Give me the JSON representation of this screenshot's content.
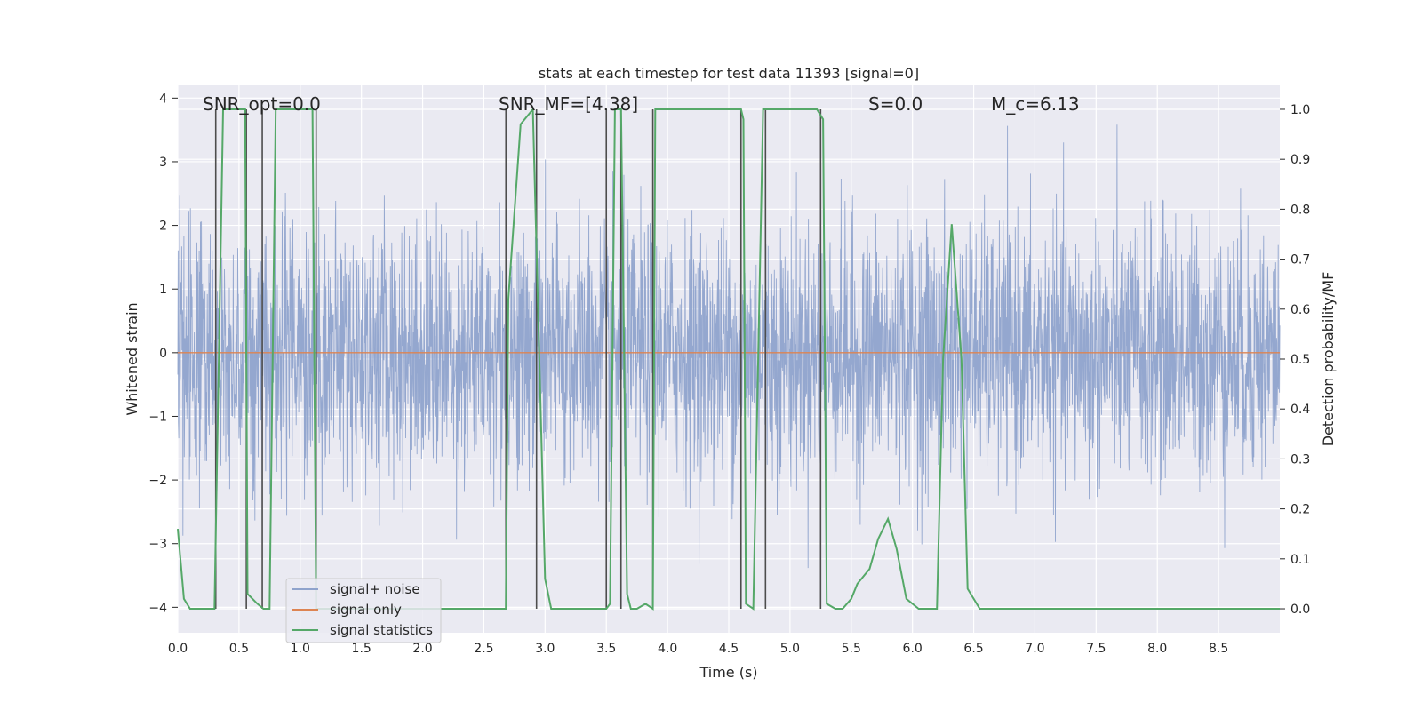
{
  "chart_data": {
    "type": "line",
    "title": "stats at each timestep for test data 11393 [signal=0]",
    "xlabel": "Time (s)",
    "ylabel": "Whitened strain",
    "y2label": "Detection probability/MF",
    "xlim": [
      0.0,
      9.0
    ],
    "ylim": [
      -4.4,
      4.2
    ],
    "y2lim": [
      -0.048,
      1.048
    ],
    "xticks": [
      0.0,
      0.5,
      1.0,
      1.5,
      2.0,
      2.5,
      3.0,
      3.5,
      4.0,
      4.5,
      5.0,
      5.5,
      6.0,
      6.5,
      7.0,
      7.5,
      8.0,
      8.5
    ],
    "xtick_labels": [
      "0.0",
      "0.5",
      "1.0",
      "1.5",
      "2.0",
      "2.5",
      "3.0",
      "3.5",
      "4.0",
      "4.5",
      "5.0",
      "5.5",
      "6.0",
      "6.5",
      "7.0",
      "7.5",
      "8.0",
      "8.5"
    ],
    "yticks": [
      -4,
      -3,
      -2,
      -1,
      0,
      1,
      2,
      3,
      4
    ],
    "ytick_labels": [
      "−4",
      "−3",
      "−2",
      "−1",
      "0",
      "1",
      "2",
      "3",
      "4"
    ],
    "y2ticks": [
      0.0,
      0.1,
      0.2,
      0.3,
      0.4,
      0.5,
      0.6,
      0.7,
      0.8,
      0.9,
      1.0
    ],
    "y2tick_labels": [
      "0.0",
      "0.1",
      "0.2",
      "0.3",
      "0.4",
      "0.5",
      "0.6",
      "0.7",
      "0.8",
      "0.9",
      "1.0"
    ],
    "grid": true,
    "legend_position": "lower-left",
    "annotations": [
      {
        "text": "SNR_opt=0.0",
        "x": 0.2
      },
      {
        "text": "SNR_MF=[4.38]",
        "x": 2.6
      },
      {
        "text": "S=0.0",
        "x": 5.6
      },
      {
        "text": "M_c=6.13",
        "x": 6.6
      }
    ],
    "colors": {
      "noise": "#8fa3cc",
      "signal_only": "#dd8452",
      "statistics": "#55a868",
      "vlines": "#4d4d4d",
      "background": "#eaeaf2",
      "grid": "#ffffff"
    },
    "series": [
      {
        "name": "signal+ noise",
        "axis": "left",
        "style": "noise",
        "amplitude_sd": 1.0,
        "range": [
          -4.0,
          4.0
        ]
      },
      {
        "name": "signal only",
        "axis": "left",
        "x": [
          0.0,
          9.0
        ],
        "y": [
          0.0,
          0.0
        ]
      },
      {
        "name": "signal statistics",
        "axis": "right",
        "x": [
          0.0,
          0.05,
          0.1,
          0.3,
          0.37,
          0.55,
          0.57,
          0.65,
          0.7,
          0.75,
          0.8,
          1.1,
          1.13,
          1.16,
          2.68,
          2.7,
          2.8,
          2.9,
          3.0,
          3.05,
          3.5,
          3.53,
          3.57,
          3.62,
          3.67,
          3.7,
          3.75,
          3.82,
          3.88,
          3.9,
          3.95,
          4.6,
          4.62,
          4.64,
          4.7,
          4.78,
          4.85,
          5.22,
          5.27,
          5.3,
          5.37,
          5.43,
          5.5,
          5.55,
          5.65,
          5.72,
          5.8,
          5.87,
          5.95,
          6.05,
          6.2,
          6.25,
          6.32,
          6.4,
          6.45,
          6.55,
          7.0,
          9.0
        ],
        "y": [
          0.16,
          0.02,
          0.0,
          0.0,
          1.0,
          1.0,
          0.03,
          0.01,
          0.0,
          0.0,
          1.0,
          1.0,
          0.0,
          0.0,
          0.0,
          0.62,
          0.97,
          1.0,
          0.06,
          0.0,
          0.0,
          0.01,
          1.0,
          1.0,
          0.03,
          0.0,
          0.0,
          0.01,
          0.0,
          1.0,
          1.0,
          1.0,
          0.98,
          0.01,
          0.0,
          1.0,
          1.0,
          1.0,
          0.98,
          0.01,
          0.0,
          0.0,
          0.02,
          0.05,
          0.08,
          0.14,
          0.18,
          0.12,
          0.02,
          0.0,
          0.0,
          0.5,
          0.77,
          0.5,
          0.04,
          0.0,
          0.0,
          0.0
        ]
      }
    ],
    "vertical_markers_x": [
      0.31,
      0.56,
      0.69,
      1.13,
      2.68,
      2.93,
      3.5,
      3.62,
      3.88,
      4.6,
      4.8,
      5.25
    ]
  }
}
